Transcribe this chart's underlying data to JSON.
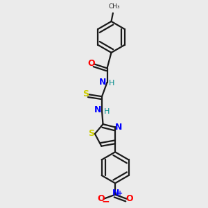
{
  "bg_color": "#ebebeb",
  "line_color": "#1a1a1a",
  "bw": 1.6,
  "N_color": "#0000ff",
  "S_color": "#cccc00",
  "O_color": "#ff0000",
  "H_color": "#008b8b",
  "figsize": [
    3.0,
    3.0
  ],
  "dpi": 100,
  "xlim": [
    0.0,
    1.0
  ],
  "ylim": [
    0.0,
    1.0
  ]
}
